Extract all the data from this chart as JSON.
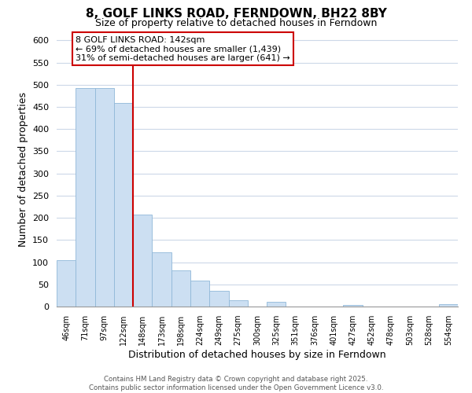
{
  "title": "8, GOLF LINKS ROAD, FERNDOWN, BH22 8BY",
  "subtitle": "Size of property relative to detached houses in Ferndown",
  "xlabel": "Distribution of detached houses by size in Ferndown",
  "ylabel": "Number of detached properties",
  "bar_labels": [
    "46sqm",
    "71sqm",
    "97sqm",
    "122sqm",
    "148sqm",
    "173sqm",
    "198sqm",
    "224sqm",
    "249sqm",
    "275sqm",
    "300sqm",
    "325sqm",
    "351sqm",
    "376sqm",
    "401sqm",
    "427sqm",
    "452sqm",
    "478sqm",
    "503sqm",
    "528sqm",
    "554sqm"
  ],
  "bar_values": [
    105,
    492,
    492,
    458,
    207,
    122,
    82,
    58,
    35,
    15,
    0,
    10,
    0,
    0,
    0,
    4,
    0,
    0,
    0,
    0,
    5
  ],
  "bar_color": "#ccdff2",
  "bar_edge_color": "#90b8d8",
  "vline_color": "#cc0000",
  "annotation_line1": "8 GOLF LINKS ROAD: 142sqm",
  "annotation_line2": "← 69% of detached houses are smaller (1,439)",
  "annotation_line3": "31% of semi-detached houses are larger (641) →",
  "annotation_box_color": "#ffffff",
  "annotation_box_edge_color": "#cc0000",
  "ylim": [
    0,
    620
  ],
  "yticks": [
    0,
    50,
    100,
    150,
    200,
    250,
    300,
    350,
    400,
    450,
    500,
    550,
    600
  ],
  "footer_line1": "Contains HM Land Registry data © Crown copyright and database right 2025.",
  "footer_line2": "Contains public sector information licensed under the Open Government Licence v3.0.",
  "background_color": "#ffffff",
  "grid_color": "#ccd8e8"
}
